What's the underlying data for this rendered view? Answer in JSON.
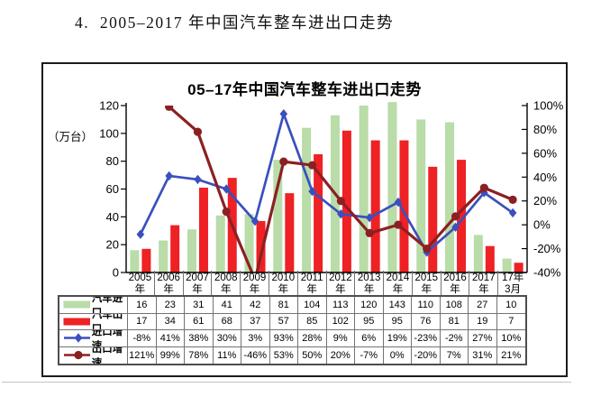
{
  "page": {
    "heading": "4.  2005–2017 年中国汽车整车进出口走势"
  },
  "chart_data": {
    "type": "combo-bar-line",
    "title": "05–17年中国汽车整车进出口走势",
    "grid": "off",
    "legend_position": "table-left-column",
    "left_axis": {
      "unit_label": "（万台）",
      "min": 0,
      "max": 120,
      "ticks": [
        120,
        100,
        80,
        60,
        40,
        20,
        0
      ]
    },
    "right_axis": {
      "min": -40,
      "max": 100,
      "ticks": [
        "100%",
        "80%",
        "60%",
        "40%",
        "20%",
        "0%",
        "-20%",
        "-40%"
      ]
    },
    "categories": [
      [
        "2005",
        "年"
      ],
      [
        "2006",
        "年"
      ],
      [
        "2007",
        "年"
      ],
      [
        "2008",
        "年"
      ],
      [
        "2009",
        "年"
      ],
      [
        "2010",
        "年"
      ],
      [
        "2011",
        "年"
      ],
      [
        "2012",
        "年"
      ],
      [
        "2013",
        "年"
      ],
      [
        "2014",
        "年"
      ],
      [
        "2015",
        "年"
      ],
      [
        "2016",
        "年"
      ],
      [
        "2017",
        "年"
      ],
      [
        "17年",
        "3月"
      ]
    ],
    "series": [
      {
        "name": "汽车进口",
        "kind": "bar",
        "marker": "none",
        "color": "#b9dca8",
        "format": "int",
        "values": [
          16,
          23,
          31,
          41,
          42,
          81,
          104,
          113,
          120,
          143,
          110,
          108,
          27,
          10
        ]
      },
      {
        "name": "汽车出口",
        "kind": "bar",
        "marker": "none",
        "color": "#ee2125",
        "format": "int",
        "values": [
          17,
          34,
          61,
          68,
          37,
          57,
          85,
          102,
          95,
          95,
          76,
          81,
          19,
          7
        ]
      },
      {
        "name": "进口增速",
        "kind": "line",
        "marker": "diamond",
        "color": "#3a50bd",
        "format": "pct",
        "values": [
          -8,
          41,
          38,
          30,
          3,
          93,
          28,
          9,
          6,
          19,
          -23,
          -2,
          27,
          10
        ]
      },
      {
        "name": "出口增速",
        "kind": "line",
        "marker": "circle",
        "color": "#8b2023",
        "format": "pct",
        "values": [
          121,
          99,
          78,
          11,
          -46,
          53,
          50,
          20,
          -7,
          0,
          -20,
          7,
          31,
          21
        ]
      }
    ],
    "colors": {
      "axis": "#000000",
      "table_grid": "#737373",
      "table_border": "#4d4d4d",
      "box_border": "#1c1c1c"
    }
  }
}
